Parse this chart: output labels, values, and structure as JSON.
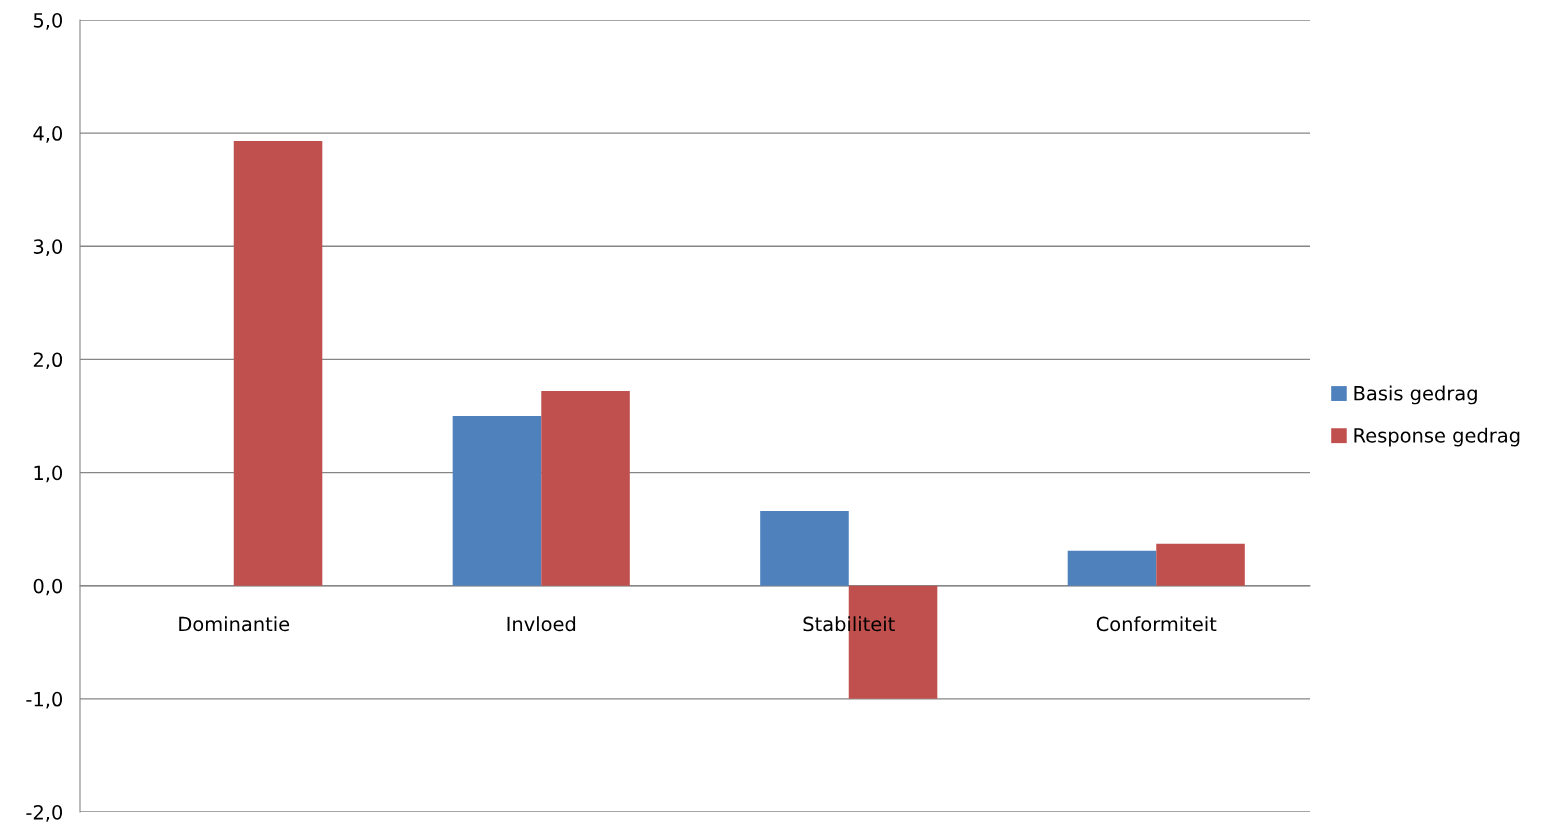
{
  "chart_data": {
    "type": "bar",
    "categories": [
      "Dominantie",
      "Invloed",
      "Stabiliteit",
      "Conformiteit"
    ],
    "series": [
      {
        "name": "Basis gedrag",
        "color": "#4f81bd",
        "values": [
          0.0,
          1.5,
          0.66,
          0.31
        ]
      },
      {
        "name": "Response gedrag",
        "color": "#c0504d",
        "values": [
          3.93,
          1.72,
          -1.0,
          0.37
        ]
      }
    ],
    "ylim": [
      -2.0,
      5.0
    ],
    "yticks": [
      {
        "value": -2,
        "label": "-2,0"
      },
      {
        "value": -1,
        "label": "-1,0"
      },
      {
        "value": 0,
        "label": "0,0"
      },
      {
        "value": 1,
        "label": "1,0"
      },
      {
        "value": 2,
        "label": "2,0"
      },
      {
        "value": 3,
        "label": "3,0"
      },
      {
        "value": 4,
        "label": "4,0"
      },
      {
        "value": 5,
        "label": "5,0"
      }
    ],
    "grid": "y",
    "legend": "right"
  }
}
